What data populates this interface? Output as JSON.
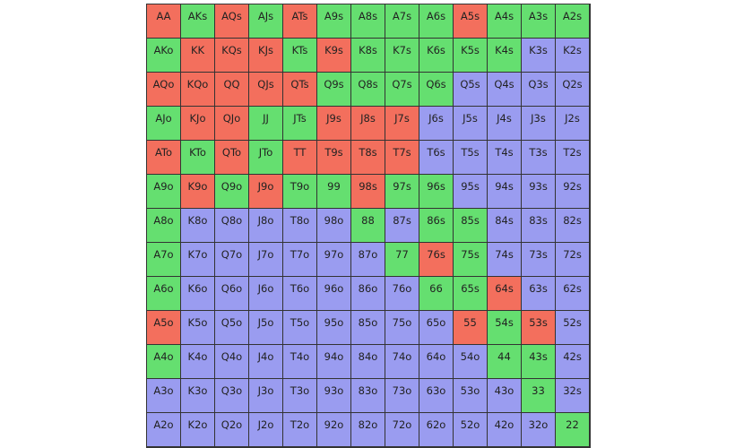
{
  "colors": {
    "R": "#f36f5d",
    "G": "#65df70",
    "B": "#9a9cf0",
    "border": "#333333",
    "text": "#222222"
  },
  "rows": [
    [
      "AA",
      "AKs",
      "AQs",
      "AJs",
      "ATs",
      "A9s",
      "A8s",
      "A7s",
      "A6s",
      "A5s",
      "A4s",
      "A3s",
      "A2s"
    ],
    [
      "AKo",
      "KK",
      "KQs",
      "KJs",
      "KTs",
      "K9s",
      "K8s",
      "K7s",
      "K6s",
      "K5s",
      "K4s",
      "K3s",
      "K2s"
    ],
    [
      "AQo",
      "KQo",
      "QQ",
      "QJs",
      "QTs",
      "Q9s",
      "Q8s",
      "Q7s",
      "Q6s",
      "Q5s",
      "Q4s",
      "Q3s",
      "Q2s"
    ],
    [
      "AJo",
      "KJo",
      "QJo",
      "JJ",
      "JTs",
      "J9s",
      "J8s",
      "J7s",
      "J6s",
      "J5s",
      "J4s",
      "J3s",
      "J2s"
    ],
    [
      "ATo",
      "KTo",
      "QTo",
      "JTo",
      "TT",
      "T9s",
      "T8s",
      "T7s",
      "T6s",
      "T5s",
      "T4s",
      "T3s",
      "T2s"
    ],
    [
      "A9o",
      "K9o",
      "Q9o",
      "J9o",
      "T9o",
      "99",
      "98s",
      "97s",
      "96s",
      "95s",
      "94s",
      "93s",
      "92s"
    ],
    [
      "A8o",
      "K8o",
      "Q8o",
      "J8o",
      "T8o",
      "98o",
      "88",
      "87s",
      "86s",
      "85s",
      "84s",
      "83s",
      "82s"
    ],
    [
      "A7o",
      "K7o",
      "Q7o",
      "J7o",
      "T7o",
      "97o",
      "87o",
      "77",
      "76s",
      "75s",
      "74s",
      "73s",
      "72s"
    ],
    [
      "A6o",
      "K6o",
      "Q6o",
      "J6o",
      "T6o",
      "96o",
      "86o",
      "76o",
      "66",
      "65s",
      "64s",
      "63s",
      "62s"
    ],
    [
      "A5o",
      "K5o",
      "Q5o",
      "J5o",
      "T5o",
      "95o",
      "85o",
      "75o",
      "65o",
      "55",
      "54s",
      "53s",
      "52s"
    ],
    [
      "A4o",
      "K4o",
      "Q4o",
      "J4o",
      "T4o",
      "94o",
      "84o",
      "74o",
      "64o",
      "54o",
      "44",
      "43s",
      "42s"
    ],
    [
      "A3o",
      "K3o",
      "Q3o",
      "J3o",
      "T3o",
      "93o",
      "83o",
      "73o",
      "63o",
      "53o",
      "43o",
      "33",
      "32s"
    ],
    [
      "A2o",
      "K2o",
      "Q2o",
      "J2o",
      "T2o",
      "92o",
      "82o",
      "72o",
      "62o",
      "52o",
      "42o",
      "32o",
      "22"
    ]
  ],
  "cell_colors": [
    "RGRGRGGGGRGGG",
    "GRRRGRGGGGGBB",
    "RRRRRGGGGBBBB",
    "GRRGGRRRBBBBB",
    "RGRGRRRRBBBBB",
    "GRGRGGRGGBBBB",
    "GBBBBBGBGGBBB",
    "GBBBBBBGRGBBB",
    "GBBBBBBBGGRBB",
    "RBBBBBBBBRGRB",
    "GBBBBBBBBBGGB",
    "BBBBBBBBBBBGB",
    "BBBBBBBBBBBBG"
  ]
}
